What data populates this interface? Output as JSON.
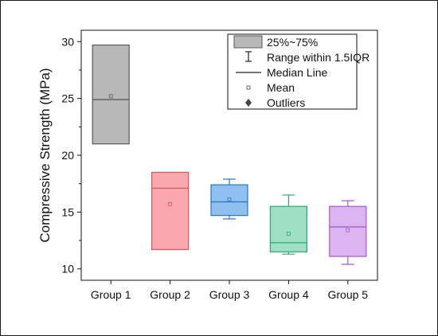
{
  "chart_data": {
    "type": "box",
    "ylabel": "Compressive Strength (MPa)",
    "xlabel": "",
    "ylim": [
      9,
      31
    ],
    "yticks": [
      "10",
      "15",
      "20",
      "25",
      "30"
    ],
    "categories": [
      "Group 1",
      "Group 2",
      "Group 3",
      "Group 4",
      "Group 5"
    ],
    "boxes": [
      {
        "q1": 21.0,
        "q3": 29.7,
        "median": 24.9,
        "mean": 25.2,
        "whisker_low": null,
        "whisker_high": null,
        "fill": "#b8b8b8",
        "stroke": "#5a5a5a"
      },
      {
        "q1": 11.7,
        "q3": 18.5,
        "median": 17.1,
        "mean": 15.7,
        "whisker_low": null,
        "whisker_high": null,
        "fill": "#f9a9ad",
        "stroke": "#e4545b"
      },
      {
        "q1": 14.7,
        "q3": 17.4,
        "median": 15.9,
        "mean": 16.1,
        "whisker_low": 14.4,
        "whisker_high": 17.9,
        "fill": "#8fc0ef",
        "stroke": "#2c73c6"
      },
      {
        "q1": 11.5,
        "q3": 15.5,
        "median": 12.3,
        "mean": 13.1,
        "whisker_low": 11.3,
        "whisker_high": 16.5,
        "fill": "#9fdfc3",
        "stroke": "#2aa873"
      },
      {
        "q1": 11.1,
        "q3": 15.5,
        "median": 13.7,
        "mean": 13.4,
        "whisker_low": 10.4,
        "whisker_high": 16.0,
        "fill": "#ddb4f2",
        "stroke": "#a956cf"
      }
    ],
    "legend": {
      "position": "top-right",
      "items": [
        "25%~75%",
        "Range within 1.5IQR",
        "Median Line",
        "Mean",
        "Outliers"
      ]
    },
    "grid": false
  }
}
